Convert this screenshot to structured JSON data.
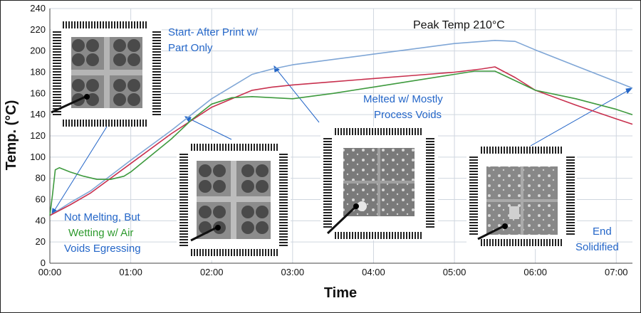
{
  "chart_data": {
    "type": "line",
    "xlabel": "Time",
    "ylabel": "Temp. (°C)",
    "ylim": [
      0,
      240
    ],
    "xlim": [
      0,
      432
    ],
    "yticks": [
      "0",
      "20",
      "40",
      "60",
      "80",
      "100",
      "120",
      "140",
      "160",
      "180",
      "200",
      "220",
      "240"
    ],
    "xticks": [
      "00:00",
      "01:00",
      "02:00",
      "03:00",
      "04:00",
      "05:00",
      "06:00",
      "07:00"
    ],
    "grid": true,
    "peak_label": "Peak Temp 210°C",
    "annotations": [
      {
        "lines": [
          "Start- After Print w/",
          "Part Only"
        ]
      },
      {
        "lines": [
          "Melted w/ Mostly",
          "Process Voids"
        ]
      },
      {
        "lines": [
          "End",
          "Solidified"
        ]
      },
      {
        "lines": [
          "Not Melting, But",
          "Wetting w/ Air",
          "Voids Egressing"
        ]
      }
    ],
    "series": [
      {
        "color": "#7fa6d6",
        "x": [
          0,
          15,
          30,
          60,
          90,
          120,
          150,
          165,
          180,
          210,
          240,
          270,
          300,
          330,
          345,
          360,
          390,
          420,
          432
        ],
        "y": [
          45,
          57,
          68,
          97,
          125,
          155,
          178,
          183,
          187,
          192,
          197,
          202,
          207,
          210,
          209,
          201,
          186,
          171,
          165
        ]
      },
      {
        "color": "#c8304e",
        "x": [
          0,
          15,
          30,
          60,
          90,
          120,
          150,
          165,
          180,
          210,
          240,
          270,
          300,
          320,
          330,
          345,
          360,
          390,
          420,
          432
        ],
        "y": [
          45,
          55,
          66,
          94,
          122,
          147,
          163,
          166,
          168,
          171,
          174,
          177,
          180,
          183,
          185,
          175,
          163,
          149,
          136,
          131
        ]
      },
      {
        "color": "#3e9a3e",
        "x": [
          0,
          2,
          4,
          7,
          15,
          25,
          35,
          45,
          55,
          60,
          90,
          105,
          120,
          135,
          150,
          165,
          180,
          210,
          240,
          270,
          300,
          315,
          330,
          345,
          360,
          390,
          420,
          432
        ],
        "y": [
          45,
          65,
          88,
          90,
          86,
          82,
          79,
          79,
          82,
          86,
          117,
          135,
          150,
          156,
          157,
          156,
          155,
          160,
          166,
          172,
          178,
          181,
          181,
          172,
          163,
          155,
          145,
          140
        ]
      }
    ]
  }
}
